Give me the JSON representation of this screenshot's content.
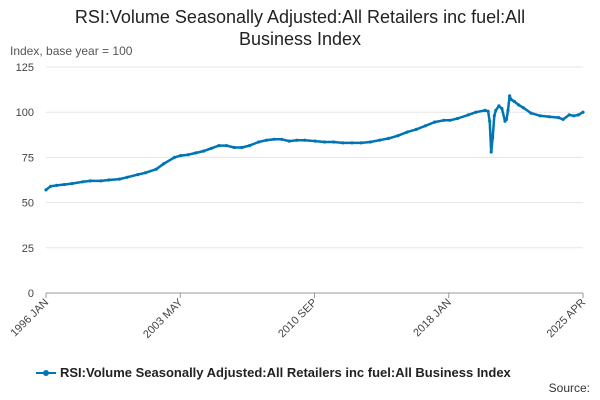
{
  "chart_data": {
    "type": "line",
    "title_lines": [
      "RSI:Volume Seasonally Adjusted:All Retailers inc fuel:All",
      "Business Index"
    ],
    "ylabel": "Index, base year = 100",
    "ylim": [
      0,
      125
    ],
    "yticks": [
      0,
      25,
      50,
      75,
      100,
      125
    ],
    "xlim": [
      "1996-01",
      "2025-04"
    ],
    "xtick_labels": [
      "1996 JAN",
      "2003 MAY",
      "2010 SEP",
      "2018 JAN",
      "2025 APR"
    ],
    "grid": true,
    "legend_position": "bottom",
    "source_label": "Source:",
    "colors": {
      "series": "#0075b4",
      "grid": "#e6e6e6",
      "axis": "#999999"
    },
    "series": [
      {
        "name": "RSI:Volume Seasonally Adjusted:All Retailers inc fuel:All Business Index",
        "points": [
          [
            "1996-01",
            57
          ],
          [
            "1996-04",
            59
          ],
          [
            "1996-08",
            59.5
          ],
          [
            "1997-01",
            60
          ],
          [
            "1997-06",
            60.5
          ],
          [
            "1998-01",
            61.5
          ],
          [
            "1998-06",
            62
          ],
          [
            "1999-01",
            62
          ],
          [
            "1999-06",
            62.5
          ],
          [
            "2000-01",
            63
          ],
          [
            "2000-06",
            64
          ],
          [
            "2001-01",
            65.5
          ],
          [
            "2001-06",
            66.5
          ],
          [
            "2002-01",
            68.5
          ],
          [
            "2002-06",
            71.5
          ],
          [
            "2003-01",
            75
          ],
          [
            "2003-05",
            76
          ],
          [
            "2003-10",
            76.5
          ],
          [
            "2004-03",
            77.5
          ],
          [
            "2004-08",
            78.5
          ],
          [
            "2005-01",
            80
          ],
          [
            "2005-06",
            81.5
          ],
          [
            "2005-11",
            81.5
          ],
          [
            "2006-04",
            80.5
          ],
          [
            "2006-09",
            80.5
          ],
          [
            "2007-02",
            81.5
          ],
          [
            "2007-08",
            83.5
          ],
          [
            "2008-01",
            84.5
          ],
          [
            "2008-06",
            85
          ],
          [
            "2008-11",
            85
          ],
          [
            "2009-04",
            84
          ],
          [
            "2009-09",
            84.5
          ],
          [
            "2010-02",
            84.5
          ],
          [
            "2010-09",
            84
          ],
          [
            "2011-03",
            83.5
          ],
          [
            "2011-09",
            83.5
          ],
          [
            "2012-03",
            83
          ],
          [
            "2012-09",
            83
          ],
          [
            "2013-03",
            83
          ],
          [
            "2013-09",
            83.5
          ],
          [
            "2014-03",
            84.5
          ],
          [
            "2014-09",
            85.5
          ],
          [
            "2015-03",
            87
          ],
          [
            "2015-09",
            89
          ],
          [
            "2016-03",
            90.5
          ],
          [
            "2016-09",
            92.5
          ],
          [
            "2017-03",
            94.5
          ],
          [
            "2017-09",
            95.5
          ],
          [
            "2018-01",
            95.5
          ],
          [
            "2018-06",
            96.5
          ],
          [
            "2019-01",
            98.5
          ],
          [
            "2019-06",
            100
          ],
          [
            "2019-12",
            101
          ],
          [
            "2020-02",
            100.5
          ],
          [
            "2020-03",
            95
          ],
          [
            "2020-04",
            78
          ],
          [
            "2020-05",
            86
          ],
          [
            "2020-06",
            98
          ],
          [
            "2020-07",
            101
          ],
          [
            "2020-09",
            103.5
          ],
          [
            "2020-11",
            102
          ],
          [
            "2021-01",
            95
          ],
          [
            "2021-02",
            96
          ],
          [
            "2021-03",
            101
          ],
          [
            "2021-04",
            109
          ],
          [
            "2021-05",
            107
          ],
          [
            "2021-07",
            106
          ],
          [
            "2021-10",
            104
          ],
          [
            "2022-01",
            102.5
          ],
          [
            "2022-06",
            99.5
          ],
          [
            "2022-12",
            98
          ],
          [
            "2023-06",
            97.5
          ],
          [
            "2023-12",
            97
          ],
          [
            "2024-03",
            96
          ],
          [
            "2024-07",
            98.5
          ],
          [
            "2024-10",
            98
          ],
          [
            "2025-01",
            98.5
          ],
          [
            "2025-04",
            100
          ]
        ]
      }
    ]
  }
}
